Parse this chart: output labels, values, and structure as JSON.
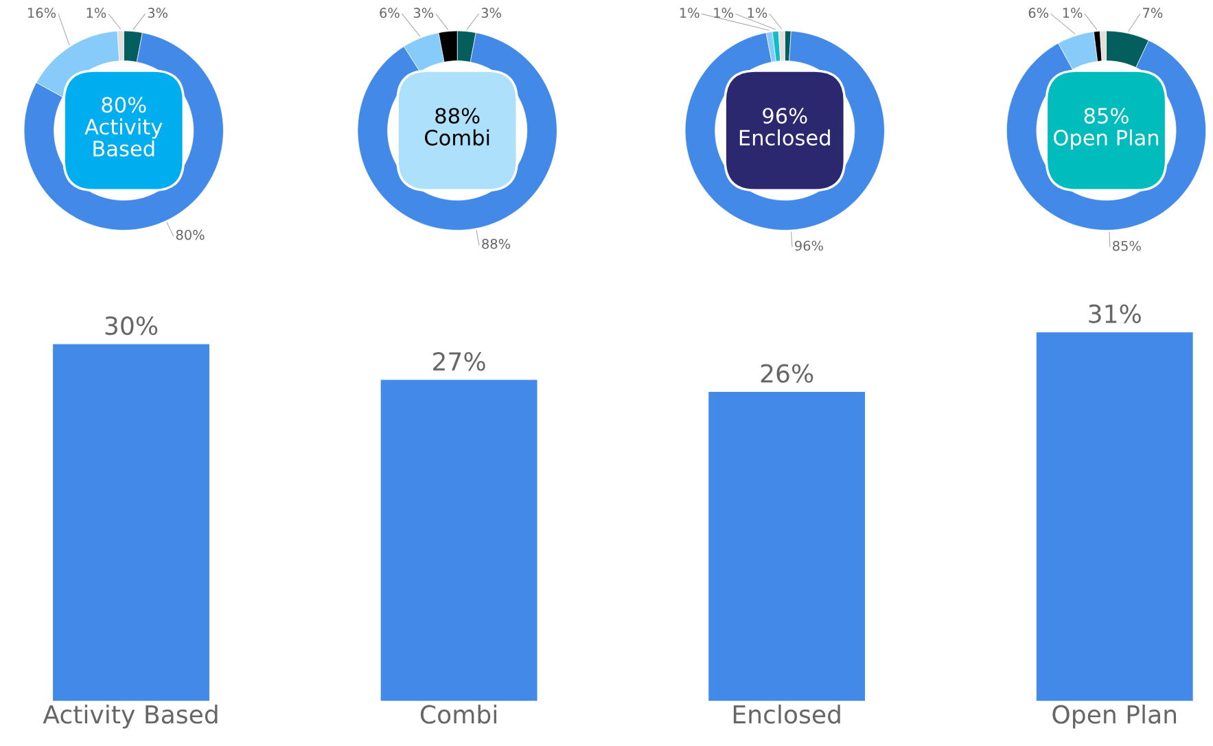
{
  "chart_data": [
    {
      "type": "donut",
      "categories": [
        null,
        null,
        null,
        null
      ],
      "values": [
        3,
        80,
        16,
        1
      ],
      "colors": [
        "#055e5e",
        "#4289e8",
        "#87cbfb",
        "#e0e0e0"
      ],
      "value_labels": [
        "3%",
        "80%",
        "16%",
        "1%"
      ],
      "annotations": [
        "80%\nActivity\nBased"
      ]
    },
    {
      "type": "donut",
      "categories": [
        null,
        null,
        null,
        null
      ],
      "values": [
        3,
        88,
        6,
        3
      ],
      "colors": [
        "#055e5e",
        "#4289e8",
        "#87cbfb",
        "#000000"
      ],
      "value_labels": [
        "3%",
        "88%",
        "6%",
        "3%"
      ],
      "annotations": [
        "88%\nCombi"
      ]
    },
    {
      "type": "donut",
      "categories": [
        null,
        null,
        null,
        null,
        null
      ],
      "values": [
        1,
        96,
        1,
        1,
        1
      ],
      "colors": [
        "#055e5e",
        "#4289e8",
        "#87cbfb",
        "#12bcc6",
        "#e0e0e0"
      ],
      "value_labels": [
        null,
        "96%",
        "1%",
        "1%",
        "1%"
      ],
      "annotations": [
        "96%\nEnclosed"
      ]
    },
    {
      "type": "donut",
      "categories": [
        null,
        null,
        null,
        null,
        null
      ],
      "values": [
        7,
        85,
        6,
        1,
        1
      ],
      "colors": [
        "#055e5e",
        "#4289e8",
        "#87cbfb",
        "#000000",
        "#e0e0e0"
      ],
      "value_labels": [
        "7%",
        "85%",
        "6%",
        "1%",
        null
      ],
      "annotations": [
        "85%\nOpen Plan"
      ]
    },
    {
      "type": "bar",
      "categories": [
        "Activity Based",
        "Combi",
        "Enclosed",
        "Open Plan"
      ],
      "values": [
        30,
        27,
        26,
        31
      ],
      "color": "#4289e8",
      "value_labels": [
        "30%",
        "27%",
        "26%",
        "31%"
      ],
      "tick_labels": "x"
    }
  ]
}
